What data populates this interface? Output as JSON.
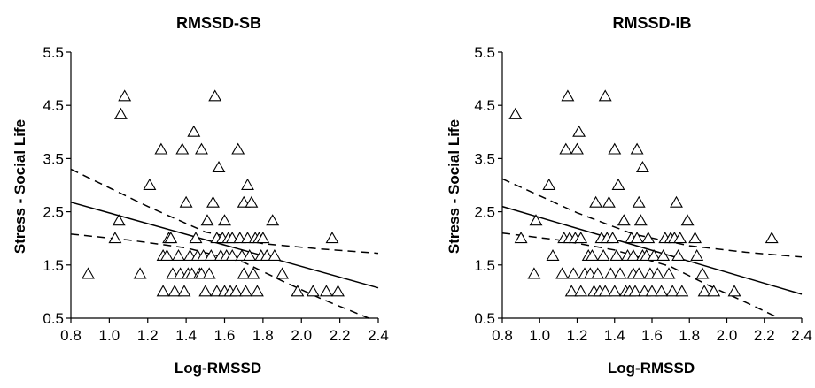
{
  "chart_data": [
    {
      "type": "scatter",
      "title": "RMSSD-SB",
      "xlabel": "Log-RMSSD",
      "ylabel": "Stress - Social Life",
      "xlim": [
        0.8,
        2.4
      ],
      "ylim": [
        0.5,
        5.5
      ],
      "xticks": [
        "0.8",
        "1.0",
        "1.2",
        "1.4",
        "1.6",
        "1.8",
        "2.0",
        "2.2",
        "2.4"
      ],
      "yticks": [
        "0.5",
        "1.5",
        "2.5",
        "3.5",
        "4.5",
        "5.5"
      ],
      "marker": "triangle",
      "grid": false,
      "points": [
        [
          0.89,
          1.33
        ],
        [
          1.03,
          2.0
        ],
        [
          1.05,
          2.33
        ],
        [
          1.06,
          4.33
        ],
        [
          1.08,
          4.67
        ],
        [
          1.16,
          1.33
        ],
        [
          1.21,
          3.0
        ],
        [
          1.27,
          3.67
        ],
        [
          1.28,
          1.0
        ],
        [
          1.28,
          1.67
        ],
        [
          1.3,
          1.67
        ],
        [
          1.31,
          2.0
        ],
        [
          1.32,
          2.0
        ],
        [
          1.33,
          1.33
        ],
        [
          1.34,
          1.0
        ],
        [
          1.36,
          1.67
        ],
        [
          1.37,
          1.33
        ],
        [
          1.38,
          3.67
        ],
        [
          1.39,
          1.0
        ],
        [
          1.4,
          2.67
        ],
        [
          1.41,
          1.33
        ],
        [
          1.42,
          1.67
        ],
        [
          1.43,
          1.33
        ],
        [
          1.44,
          4.0
        ],
        [
          1.45,
          2.0
        ],
        [
          1.46,
          1.67
        ],
        [
          1.47,
          1.33
        ],
        [
          1.48,
          1.33
        ],
        [
          1.48,
          3.67
        ],
        [
          1.49,
          1.67
        ],
        [
          1.5,
          1.0
        ],
        [
          1.51,
          2.33
        ],
        [
          1.52,
          1.33
        ],
        [
          1.53,
          1.67
        ],
        [
          1.54,
          2.67
        ],
        [
          1.55,
          4.67
        ],
        [
          1.56,
          2.0
        ],
        [
          1.56,
          1.0
        ],
        [
          1.57,
          3.33
        ],
        [
          1.58,
          1.67
        ],
        [
          1.59,
          2.0
        ],
        [
          1.6,
          1.0
        ],
        [
          1.6,
          2.33
        ],
        [
          1.61,
          1.67
        ],
        [
          1.62,
          2.0
        ],
        [
          1.63,
          1.0
        ],
        [
          1.64,
          2.0
        ],
        [
          1.64,
          1.67
        ],
        [
          1.66,
          1.0
        ],
        [
          1.67,
          3.67
        ],
        [
          1.68,
          2.0
        ],
        [
          1.69,
          1.67
        ],
        [
          1.7,
          2.67
        ],
        [
          1.7,
          1.33
        ],
        [
          1.71,
          1.0
        ],
        [
          1.72,
          3.0
        ],
        [
          1.72,
          2.0
        ],
        [
          1.73,
          1.67
        ],
        [
          1.74,
          2.67
        ],
        [
          1.75,
          1.33
        ],
        [
          1.76,
          2.0
        ],
        [
          1.77,
          1.0
        ],
        [
          1.78,
          2.0
        ],
        [
          1.79,
          1.67
        ],
        [
          1.8,
          2.0
        ],
        [
          1.82,
          1.67
        ],
        [
          1.85,
          2.33
        ],
        [
          1.86,
          1.67
        ],
        [
          1.9,
          1.33
        ],
        [
          1.98,
          1.0
        ],
        [
          2.06,
          1.0
        ],
        [
          2.13,
          1.0
        ],
        [
          2.16,
          2.0
        ],
        [
          2.19,
          1.0
        ]
      ],
      "fit_line": [
        [
          0.8,
          2.68
        ],
        [
          2.4,
          1.07
        ]
      ],
      "ci_upper": [
        [
          0.8,
          3.3
        ],
        [
          1.2,
          2.6
        ],
        [
          1.5,
          2.12
        ],
        [
          1.8,
          1.9
        ],
        [
          2.1,
          1.8
        ],
        [
          2.4,
          1.72
        ]
      ],
      "ci_lower": [
        [
          0.8,
          2.08
        ],
        [
          1.1,
          1.97
        ],
        [
          1.4,
          1.82
        ],
        [
          1.7,
          1.55
        ],
        [
          1.9,
          1.2
        ],
        [
          2.1,
          0.87
        ],
        [
          2.35,
          0.5
        ]
      ]
    },
    {
      "type": "scatter",
      "title": "RMSSD-IB",
      "xlabel": "Log-RMSSD",
      "ylabel": "Stress - Social Life",
      "xlim": [
        0.8,
        2.4
      ],
      "ylim": [
        0.5,
        5.5
      ],
      "xticks": [
        "0.8",
        "1.0",
        "1.2",
        "1.4",
        "1.6",
        "1.8",
        "2.0",
        "2.2",
        "2.4"
      ],
      "yticks": [
        "0.5",
        "1.5",
        "2.5",
        "3.5",
        "4.5",
        "5.5"
      ],
      "marker": "triangle",
      "grid": false,
      "points": [
        [
          0.87,
          4.33
        ],
        [
          0.9,
          2.0
        ],
        [
          0.97,
          1.33
        ],
        [
          0.98,
          2.33
        ],
        [
          1.05,
          3.0
        ],
        [
          1.07,
          1.67
        ],
        [
          1.12,
          1.33
        ],
        [
          1.13,
          2.0
        ],
        [
          1.14,
          3.67
        ],
        [
          1.15,
          4.67
        ],
        [
          1.16,
          2.0
        ],
        [
          1.17,
          1.0
        ],
        [
          1.18,
          1.33
        ],
        [
          1.19,
          2.0
        ],
        [
          1.2,
          3.67
        ],
        [
          1.21,
          4.0
        ],
        [
          1.22,
          1.0
        ],
        [
          1.22,
          2.0
        ],
        [
          1.24,
          1.33
        ],
        [
          1.26,
          1.67
        ],
        [
          1.27,
          1.33
        ],
        [
          1.28,
          1.67
        ],
        [
          1.29,
          1.0
        ],
        [
          1.3,
          2.67
        ],
        [
          1.31,
          1.33
        ],
        [
          1.32,
          1.0
        ],
        [
          1.33,
          2.0
        ],
        [
          1.34,
          1.67
        ],
        [
          1.35,
          1.0
        ],
        [
          1.35,
          4.67
        ],
        [
          1.36,
          2.0
        ],
        [
          1.37,
          2.67
        ],
        [
          1.38,
          1.33
        ],
        [
          1.39,
          2.0
        ],
        [
          1.4,
          1.0
        ],
        [
          1.4,
          3.67
        ],
        [
          1.41,
          1.67
        ],
        [
          1.42,
          3.0
        ],
        [
          1.43,
          1.33
        ],
        [
          1.45,
          2.33
        ],
        [
          1.46,
          1.0
        ],
        [
          1.47,
          1.67
        ],
        [
          1.48,
          1.0
        ],
        [
          1.49,
          2.0
        ],
        [
          1.5,
          1.33
        ],
        [
          1.5,
          1.67
        ],
        [
          1.51,
          1.0
        ],
        [
          1.52,
          3.67
        ],
        [
          1.52,
          2.0
        ],
        [
          1.53,
          2.67
        ],
        [
          1.53,
          1.33
        ],
        [
          1.54,
          2.33
        ],
        [
          1.55,
          3.33
        ],
        [
          1.55,
          1.67
        ],
        [
          1.56,
          1.0
        ],
        [
          1.57,
          1.67
        ],
        [
          1.58,
          2.0
        ],
        [
          1.59,
          1.33
        ],
        [
          1.6,
          1.0
        ],
        [
          1.61,
          1.67
        ],
        [
          1.63,
          1.33
        ],
        [
          1.65,
          1.0
        ],
        [
          1.66,
          1.67
        ],
        [
          1.67,
          2.0
        ],
        [
          1.69,
          1.33
        ],
        [
          1.7,
          2.0
        ],
        [
          1.71,
          1.0
        ],
        [
          1.72,
          2.0
        ],
        [
          1.73,
          2.67
        ],
        [
          1.74,
          1.67
        ],
        [
          1.75,
          2.0
        ],
        [
          1.76,
          1.0
        ],
        [
          1.79,
          2.33
        ],
        [
          1.83,
          2.0
        ],
        [
          1.84,
          1.67
        ],
        [
          1.87,
          1.33
        ],
        [
          1.88,
          1.0
        ],
        [
          1.93,
          1.0
        ],
        [
          2.04,
          1.0
        ],
        [
          2.24,
          2.0
        ]
      ],
      "fit_line": [
        [
          0.8,
          2.6
        ],
        [
          2.4,
          0.95
        ]
      ],
      "ci_upper": [
        [
          0.8,
          3.12
        ],
        [
          1.2,
          2.48
        ],
        [
          1.5,
          2.08
        ],
        [
          1.8,
          1.86
        ],
        [
          2.1,
          1.74
        ],
        [
          2.4,
          1.65
        ]
      ],
      "ci_lower": [
        [
          0.8,
          2.1
        ],
        [
          1.1,
          1.97
        ],
        [
          1.4,
          1.78
        ],
        [
          1.7,
          1.47
        ],
        [
          1.9,
          1.12
        ],
        [
          2.1,
          0.8
        ],
        [
          2.28,
          0.5
        ]
      ]
    }
  ]
}
